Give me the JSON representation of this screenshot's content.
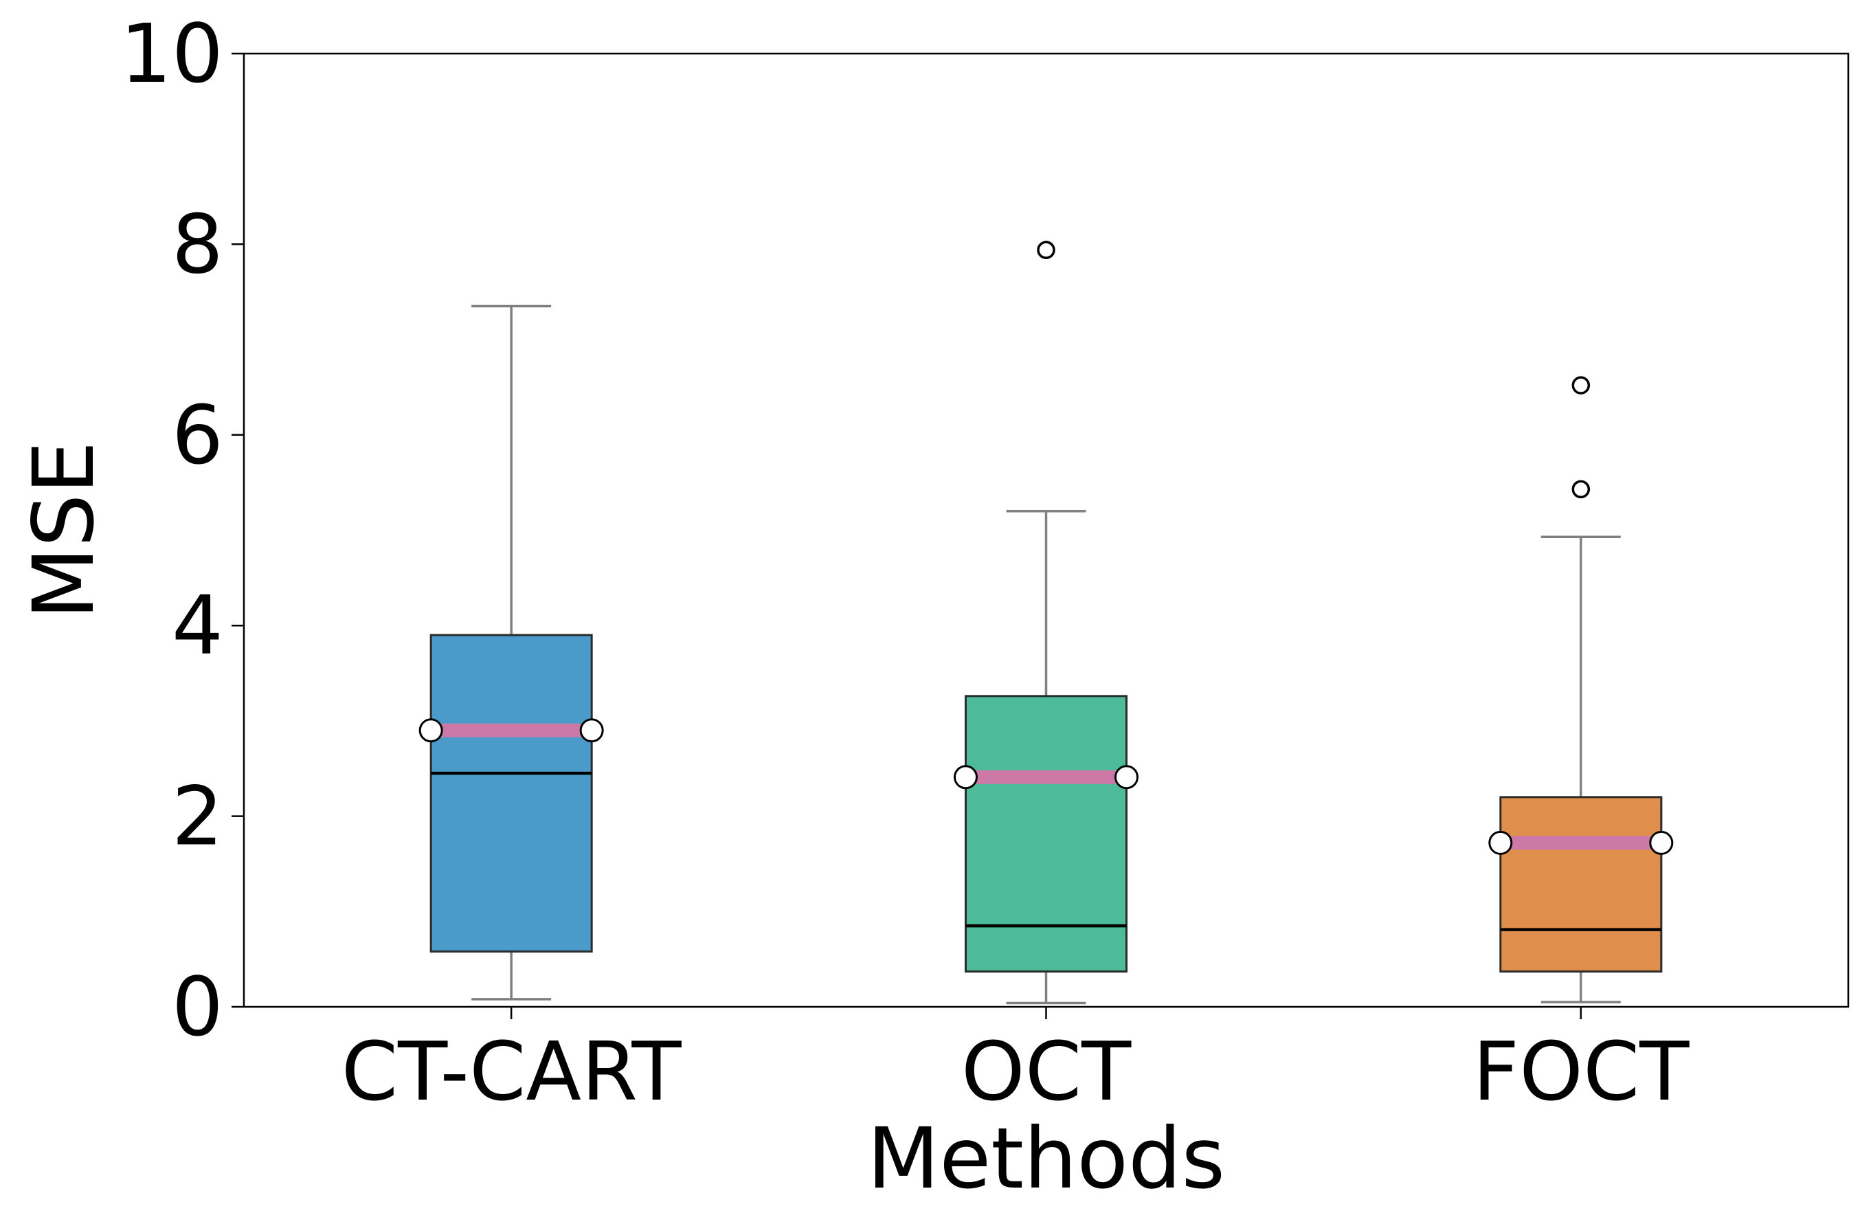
{
  "chart_data": {
    "type": "box",
    "xlabel": "Methods",
    "ylabel": "MSE",
    "ylim": [
      0,
      10
    ],
    "yticks": [
      "0",
      "2",
      "4",
      "6",
      "8",
      "10"
    ],
    "categories": [
      "CT-CART",
      "OCT",
      "FOCT"
    ],
    "grid": false,
    "legend": "none",
    "boxes": [
      {
        "category": "CT-CART",
        "whisker_low": 0.08,
        "q1": 0.58,
        "median": 2.45,
        "mean": 2.9,
        "q3": 3.9,
        "whisker_high": 7.35,
        "outliers": [],
        "color": "#4a9bc9"
      },
      {
        "category": "OCT",
        "whisker_low": 0.04,
        "q1": 0.37,
        "median": 0.85,
        "mean": 2.41,
        "q3": 3.26,
        "whisker_high": 5.2,
        "outliers": [
          7.94
        ],
        "color": "#4dbb9a"
      },
      {
        "category": "FOCT",
        "whisker_low": 0.05,
        "q1": 0.37,
        "median": 0.81,
        "mean": 1.72,
        "q3": 2.2,
        "whisker_high": 4.93,
        "outliers": [
          5.43,
          6.52
        ],
        "color": "#e08e4c"
      }
    ],
    "style": {
      "median_color": "#000000",
      "mean_line_color": "#cc79a7",
      "mean_marker_fill": "#ffffff",
      "whisker_color": "#808080",
      "box_edge_color": "#2b2b2b"
    }
  }
}
